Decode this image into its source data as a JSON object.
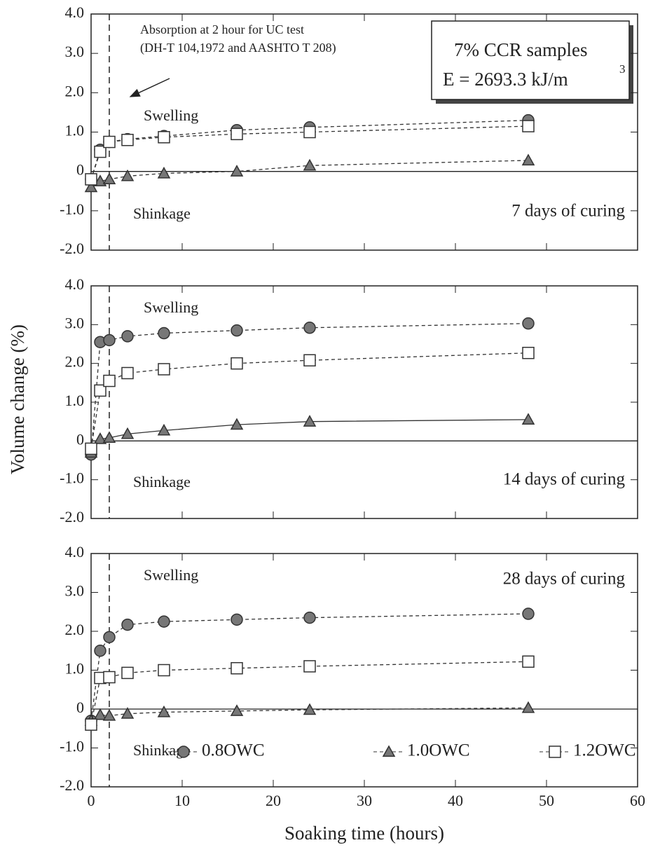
{
  "chart_data": [
    {
      "type": "line",
      "annotation_lines": [
        "Absorption at 2 hour for UC test",
        "(DH-T 104,1972 and AASHTO T 208)"
      ],
      "box_lines": [
        "7% CCR samples",
        "E = 2693.3 kJ/m"
      ],
      "box_superscript": "3",
      "swell_label": "Swelling",
      "shrink_label": "Shinkage",
      "curing_label": "7 days of curing",
      "x": [
        0,
        1,
        2,
        4,
        8,
        16,
        24,
        48
      ],
      "series": [
        {
          "marker": "circle",
          "color": "#777777",
          "line": "dashed",
          "values": [
            -0.2,
            0.55,
            0.75,
            0.82,
            0.9,
            1.05,
            1.12,
            1.3
          ]
        },
        {
          "marker": "triangle",
          "color": "#777777",
          "line": "dashed",
          "values": [
            -0.4,
            -0.25,
            -0.2,
            -0.12,
            -0.05,
            0.0,
            0.15,
            0.28
          ]
        },
        {
          "marker": "square",
          "color": "#ffffff",
          "line": "dashed",
          "values": [
            -0.2,
            0.5,
            0.75,
            0.8,
            0.87,
            0.95,
            1.0,
            1.15
          ]
        }
      ],
      "xlim": [
        0,
        60
      ],
      "xticks": [
        0,
        10,
        20,
        30,
        40,
        50,
        60
      ],
      "xtick_labels": false,
      "ylim": [
        -2,
        4
      ],
      "yticks": [
        {
          "value": -2,
          "label": "-2.0"
        },
        {
          "value": -1,
          "label": "-1.0"
        },
        0,
        {
          "value": 1,
          "label": "1.0"
        },
        {
          "value": 2,
          "label": "2.0"
        },
        {
          "value": 3,
          "label": "3.0"
        },
        {
          "value": 4,
          "label": "4.0"
        }
      ],
      "vline": 2,
      "zero_line": true
    },
    {
      "type": "line",
      "ylabel": "Volume change (%)",
      "swell_label": "Swelling",
      "shrink_label": "Shinkage",
      "curing_label": "14 days of curing",
      "x": [
        0,
        1,
        2,
        4,
        8,
        16,
        24,
        48
      ],
      "series": [
        {
          "marker": "circle",
          "color": "#777777",
          "line": "dashed",
          "values": [
            -0.35,
            2.55,
            2.6,
            2.7,
            2.78,
            2.85,
            2.92,
            3.03
          ]
        },
        {
          "marker": "triangle",
          "color": "#777777",
          "line": "solid",
          "values": [
            -0.3,
            0.05,
            0.08,
            0.18,
            0.27,
            0.42,
            0.5,
            0.55
          ]
        },
        {
          "marker": "square",
          "color": "#ffffff",
          "line": "dashed",
          "values": [
            -0.2,
            1.3,
            1.55,
            1.75,
            1.85,
            2.0,
            2.08,
            2.27
          ]
        }
      ],
      "xlim": [
        0,
        60
      ],
      "xticks": [
        0,
        10,
        20,
        30,
        40,
        50,
        60
      ],
      "xtick_labels": false,
      "ylim": [
        -2,
        4
      ],
      "yticks": [
        {
          "value": -2,
          "label": "-2.0"
        },
        {
          "value": -1,
          "label": "-1.0"
        },
        0,
        {
          "value": 1,
          "label": "1.0"
        },
        {
          "value": 2,
          "label": "2.0"
        },
        {
          "value": 3,
          "label": "3.0"
        },
        {
          "value": 4,
          "label": "4.0"
        }
      ],
      "vline": 2,
      "zero_line": true
    },
    {
      "type": "line",
      "xlabel": "Soaking time (hours)",
      "swell_label": "Swelling",
      "shrink_label": "Shinkage",
      "curing_label": "28 days of curing",
      "x": [
        0,
        1,
        2,
        4,
        8,
        16,
        24,
        48
      ],
      "series": [
        {
          "name": "0.8OWC",
          "marker": "circle",
          "color": "#777777",
          "line": "dashed",
          "values": [
            -0.3,
            1.5,
            1.85,
            2.17,
            2.25,
            2.3,
            2.35,
            2.45
          ]
        },
        {
          "name": "1.0OWC",
          "marker": "triangle",
          "color": "#777777",
          "line": "dashed",
          "values": [
            -0.3,
            -0.15,
            -0.17,
            -0.12,
            -0.08,
            -0.05,
            -0.02,
            0.03
          ]
        },
        {
          "name": "1.2OWC",
          "marker": "square",
          "color": "#ffffff",
          "line": "dashed",
          "values": [
            -0.4,
            0.8,
            0.82,
            0.93,
            1.0,
            1.05,
            1.1,
            1.22
          ]
        }
      ],
      "xlim": [
        0,
        60
      ],
      "xticks": [
        0,
        10,
        20,
        30,
        40,
        50,
        60
      ],
      "xtick_labels": true,
      "ylim": [
        -2,
        4
      ],
      "yticks": [
        {
          "value": -2,
          "label": "-2.0"
        },
        {
          "value": -1,
          "label": "-1.0"
        },
        0,
        {
          "value": 1,
          "label": "1.0"
        },
        {
          "value": 2,
          "label": "2.0"
        },
        {
          "value": 3,
          "label": "3.0"
        },
        {
          "value": 4,
          "label": "4.0"
        }
      ],
      "vline": 2,
      "zero_line": true,
      "legend": "bottom"
    }
  ]
}
